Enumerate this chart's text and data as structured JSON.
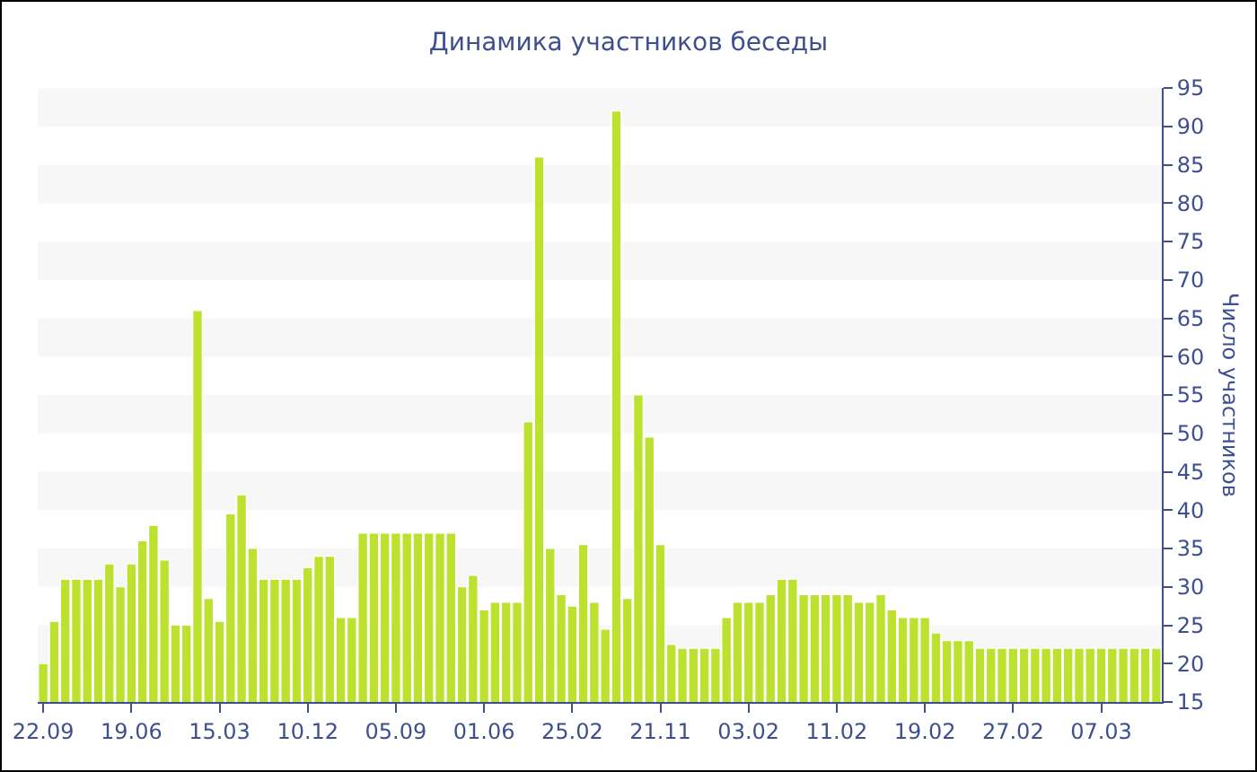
{
  "chart_data": {
    "type": "bar",
    "title": "Динамика участников беседы",
    "ylabel": "Число участников",
    "categories": [
      "22.09",
      null,
      null,
      null,
      null,
      null,
      null,
      null,
      "19.06",
      null,
      null,
      null,
      null,
      null,
      null,
      null,
      "15.03",
      null,
      null,
      null,
      null,
      null,
      null,
      null,
      "10.12",
      null,
      null,
      null,
      null,
      null,
      null,
      null,
      "05.09",
      null,
      null,
      null,
      null,
      null,
      null,
      null,
      "01.06",
      null,
      null,
      null,
      null,
      null,
      null,
      null,
      "25.02",
      null,
      null,
      null,
      null,
      null,
      null,
      null,
      "21.11",
      null,
      null,
      null,
      null,
      null,
      null,
      null,
      "03.02",
      null,
      null,
      null,
      null,
      null,
      null,
      null,
      "11.02",
      null,
      null,
      null,
      null,
      null,
      null,
      null,
      "19.02",
      null,
      null,
      null,
      null,
      null,
      null,
      null,
      "27.02",
      null,
      null,
      null,
      null,
      null,
      null,
      null,
      "07.03",
      null,
      null,
      null,
      null,
      null
    ],
    "values": [
      20,
      25.5,
      31,
      31,
      31,
      31,
      33,
      30,
      33,
      36,
      38,
      33.5,
      25,
      25,
      66,
      28.5,
      25.5,
      39.5,
      42,
      35,
      31,
      31,
      31,
      31,
      32.5,
      34,
      34,
      26,
      26,
      37,
      37,
      37,
      37,
      37,
      37,
      37,
      37,
      37,
      30,
      31.5,
      27,
      28,
      28,
      28,
      51.5,
      86,
      35,
      29,
      27.5,
      35.5,
      28,
      24.5,
      92,
      28.5,
      55,
      49.5,
      35.5,
      22.5,
      22,
      22,
      22,
      22,
      26,
      28,
      28,
      28,
      29,
      31,
      31,
      29,
      29,
      29,
      29,
      29,
      28,
      28,
      29,
      27,
      26,
      26,
      26,
      24,
      23,
      23,
      23,
      22,
      22,
      22,
      22,
      22,
      22,
      22,
      22,
      22,
      22,
      22,
      22,
      22,
      22,
      22,
      22,
      22
    ],
    "color": "#bde12f",
    "ylim": [
      15,
      95
    ],
    "yticks": [
      15,
      20,
      25,
      30,
      35,
      40,
      45,
      50,
      55,
      60,
      65,
      70,
      75,
      80,
      85,
      90,
      95
    ],
    "bands": [
      {
        "axis": "y",
        "from": 20,
        "to": 25,
        "color": "#f7f7f7"
      },
      {
        "axis": "y",
        "from": 30,
        "to": 35,
        "color": "#f7f7f7"
      },
      {
        "axis": "y",
        "from": 40,
        "to": 45,
        "color": "#f7f7f7"
      },
      {
        "axis": "y",
        "from": 50,
        "to": 55,
        "color": "#f7f7f7"
      },
      {
        "axis": "y",
        "from": 60,
        "to": 65,
        "color": "#f7f7f7"
      },
      {
        "axis": "y",
        "from": 70,
        "to": 75,
        "color": "#f7f7f7"
      },
      {
        "axis": "y",
        "from": 80,
        "to": 85,
        "color": "#f7f7f7"
      },
      {
        "axis": "y",
        "from": 90,
        "to": 95,
        "color": "#f7f7f7"
      }
    ]
  }
}
